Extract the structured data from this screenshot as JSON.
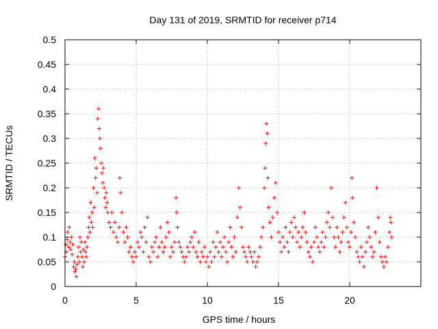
{
  "chart_data": {
    "type": "scatter",
    "title": "Day 131 of 2019, SRMTID for receiver p714",
    "xlabel": "GPS time / hours",
    "ylabel": "SRMTID / TECUs",
    "xlim": [
      0,
      25
    ],
    "ylim": [
      0,
      0.5
    ],
    "xticks": [
      0,
      5,
      10,
      15,
      20
    ],
    "xtick_labels": [
      "0",
      "5",
      "10",
      "15",
      "20"
    ],
    "yticks": [
      0,
      0.05,
      0.1,
      0.15,
      0.2,
      0.25,
      0.3,
      0.35,
      0.4,
      0.45,
      0.5
    ],
    "ytick_labels": [
      "0",
      "0.05",
      "0.1",
      "0.15",
      "0.2",
      "0.25",
      "0.3",
      "0.35",
      "0.4",
      "0.45",
      "0.5"
    ],
    "grid": true,
    "marker": "+",
    "color": "#ff0000",
    "series": [
      {
        "name": "SRMTID",
        "points": [
          [
            0.0,
            0.06
          ],
          [
            0.05,
            0.085
          ],
          [
            0.1,
            0.07
          ],
          [
            0.15,
            0.095
          ],
          [
            0.2,
            0.11
          ],
          [
            0.25,
            0.08
          ],
          [
            0.3,
            0.12
          ],
          [
            0.35,
            0.09
          ],
          [
            0.4,
            0.075
          ],
          [
            0.45,
            0.1
          ],
          [
            0.5,
            0.065
          ],
          [
            0.55,
            0.085
          ],
          [
            0.6,
            0.04
          ],
          [
            0.65,
            0.05
          ],
          [
            0.7,
            0.03
          ],
          [
            0.75,
            0.035
          ],
          [
            0.8,
            0.02
          ],
          [
            0.85,
            0.045
          ],
          [
            0.9,
            0.06
          ],
          [
            0.95,
            0.08
          ],
          [
            1.0,
            0.05
          ],
          [
            1.05,
            0.1
          ],
          [
            1.1,
            0.07
          ],
          [
            1.15,
            0.09
          ],
          [
            1.2,
            0.06
          ],
          [
            1.25,
            0.04
          ],
          [
            1.3,
            0.075
          ],
          [
            1.35,
            0.05
          ],
          [
            1.4,
            0.09
          ],
          [
            1.45,
            0.07
          ],
          [
            1.5,
            0.06
          ],
          [
            1.55,
            0.08
          ],
          [
            1.6,
            0.1
          ],
          [
            1.65,
            0.12
          ],
          [
            1.7,
            0.14
          ],
          [
            1.75,
            0.11
          ],
          [
            1.8,
            0.17
          ],
          [
            1.85,
            0.13
          ],
          [
            1.9,
            0.15
          ],
          [
            1.95,
            0.12
          ],
          [
            2.0,
            0.2
          ],
          [
            2.05,
            0.16
          ],
          [
            2.1,
            0.26
          ],
          [
            2.15,
            0.22
          ],
          [
            2.2,
            0.24
          ],
          [
            2.25,
            0.19
          ],
          [
            2.3,
            0.34
          ],
          [
            2.35,
            0.36
          ],
          [
            2.4,
            0.32
          ],
          [
            2.45,
            0.3
          ],
          [
            2.5,
            0.28
          ],
          [
            2.55,
            0.25
          ],
          [
            2.6,
            0.23
          ],
          [
            2.65,
            0.21
          ],
          [
            2.7,
            0.24
          ],
          [
            2.75,
            0.2
          ],
          [
            2.8,
            0.18
          ],
          [
            2.85,
            0.16
          ],
          [
            2.9,
            0.19
          ],
          [
            2.95,
            0.17
          ],
          [
            3.0,
            0.15
          ],
          [
            3.1,
            0.13
          ],
          [
            3.2,
            0.12
          ],
          [
            3.3,
            0.15
          ],
          [
            3.4,
            0.11
          ],
          [
            3.5,
            0.13
          ],
          [
            3.6,
            0.1
          ],
          [
            3.7,
            0.09
          ],
          [
            3.8,
            0.12
          ],
          [
            3.85,
            0.22
          ],
          [
            3.9,
            0.19
          ],
          [
            4.0,
            0.15
          ],
          [
            4.1,
            0.11
          ],
          [
            4.2,
            0.09
          ],
          [
            4.3,
            0.12
          ],
          [
            4.4,
            0.1
          ],
          [
            4.5,
            0.07
          ],
          [
            4.6,
            0.08
          ],
          [
            4.7,
            0.06
          ],
          [
            4.8,
            0.05
          ],
          [
            4.9,
            0.07
          ],
          [
            5.0,
            0.06
          ],
          [
            5.1,
            0.09
          ],
          [
            5.2,
            0.08
          ],
          [
            5.3,
            0.11
          ],
          [
            5.4,
            0.1
          ],
          [
            5.5,
            0.07
          ],
          [
            5.6,
            0.12
          ],
          [
            5.7,
            0.09
          ],
          [
            5.8,
            0.14
          ],
          [
            5.9,
            0.06
          ],
          [
            6.0,
            0.05
          ],
          [
            6.1,
            0.08
          ],
          [
            6.2,
            0.07
          ],
          [
            6.3,
            0.09
          ],
          [
            6.4,
            0.1
          ],
          [
            6.5,
            0.06
          ],
          [
            6.6,
            0.08
          ],
          [
            6.7,
            0.12
          ],
          [
            6.8,
            0.09
          ],
          [
            6.9,
            0.07
          ],
          [
            7.0,
            0.08
          ],
          [
            7.1,
            0.1
          ],
          [
            7.2,
            0.13
          ],
          [
            7.3,
            0.11
          ],
          [
            7.4,
            0.06
          ],
          [
            7.5,
            0.08
          ],
          [
            7.6,
            0.07
          ],
          [
            7.7,
            0.09
          ],
          [
            7.8,
            0.18
          ],
          [
            7.85,
            0.15
          ],
          [
            7.9,
            0.12
          ],
          [
            8.0,
            0.09
          ],
          [
            8.1,
            0.08
          ],
          [
            8.2,
            0.07
          ],
          [
            8.3,
            0.06
          ],
          [
            8.4,
            0.05
          ],
          [
            8.5,
            0.06
          ],
          [
            8.6,
            0.08
          ],
          [
            8.7,
            0.07
          ],
          [
            8.8,
            0.09
          ],
          [
            8.9,
            0.1
          ],
          [
            9.0,
            0.08
          ],
          [
            9.1,
            0.11
          ],
          [
            9.2,
            0.07
          ],
          [
            9.3,
            0.06
          ],
          [
            9.4,
            0.09
          ],
          [
            9.5,
            0.05
          ],
          [
            9.6,
            0.07
          ],
          [
            9.7,
            0.06
          ],
          [
            9.8,
            0.08
          ],
          [
            9.9,
            0.05
          ],
          [
            10.0,
            0.06
          ],
          [
            10.1,
            0.04
          ],
          [
            10.2,
            0.07
          ],
          [
            10.3,
            0.05
          ],
          [
            10.4,
            0.09
          ],
          [
            10.5,
            0.06
          ],
          [
            10.6,
            0.08
          ],
          [
            10.7,
            0.11
          ],
          [
            10.8,
            0.07
          ],
          [
            10.9,
            0.09
          ],
          [
            11.0,
            0.06
          ],
          [
            11.1,
            0.08
          ],
          [
            11.2,
            0.1
          ],
          [
            11.3,
            0.07
          ],
          [
            11.4,
            0.05
          ],
          [
            11.5,
            0.09
          ],
          [
            11.6,
            0.12
          ],
          [
            11.7,
            0.08
          ],
          [
            11.8,
            0.06
          ],
          [
            11.9,
            0.1
          ],
          [
            12.0,
            0.07
          ],
          [
            12.1,
            0.14
          ],
          [
            12.2,
            0.2
          ],
          [
            12.3,
            0.16
          ],
          [
            12.4,
            0.12
          ],
          [
            12.5,
            0.08
          ],
          [
            12.6,
            0.07
          ],
          [
            12.7,
            0.06
          ],
          [
            12.8,
            0.05
          ],
          [
            12.9,
            0.08
          ],
          [
            13.0,
            0.07
          ],
          [
            13.1,
            0.06
          ],
          [
            13.2,
            0.05
          ],
          [
            13.3,
            0.07
          ],
          [
            13.4,
            0.04
          ],
          [
            13.5,
            0.05
          ],
          [
            13.6,
            0.06
          ],
          [
            13.7,
            0.08
          ],
          [
            13.8,
            0.1
          ],
          [
            13.9,
            0.12
          ],
          [
            14.0,
            0.2
          ],
          [
            14.05,
            0.24
          ],
          [
            14.1,
            0.29
          ],
          [
            14.15,
            0.33
          ],
          [
            14.2,
            0.31
          ],
          [
            14.25,
            0.22
          ],
          [
            14.3,
            0.16
          ],
          [
            14.4,
            0.13
          ],
          [
            14.5,
            0.1
          ],
          [
            14.6,
            0.14
          ],
          [
            14.7,
            0.18
          ],
          [
            14.8,
            0.21
          ],
          [
            14.9,
            0.15
          ],
          [
            15.0,
            0.11
          ],
          [
            15.1,
            0.09
          ],
          [
            15.2,
            0.07
          ],
          [
            15.3,
            0.1
          ],
          [
            15.4,
            0.08
          ],
          [
            15.5,
            0.12
          ],
          [
            15.6,
            0.09
          ],
          [
            15.7,
            0.07
          ],
          [
            15.8,
            0.11
          ],
          [
            15.9,
            0.13
          ],
          [
            16.0,
            0.1
          ],
          [
            16.1,
            0.14
          ],
          [
            16.2,
            0.12
          ],
          [
            16.3,
            0.09
          ],
          [
            16.4,
            0.11
          ],
          [
            16.5,
            0.08
          ],
          [
            16.6,
            0.1
          ],
          [
            16.7,
            0.12
          ],
          [
            16.8,
            0.15
          ],
          [
            16.9,
            0.11
          ],
          [
            17.0,
            0.09
          ],
          [
            17.1,
            0.07
          ],
          [
            17.2,
            0.06
          ],
          [
            17.3,
            0.08
          ],
          [
            17.4,
            0.05
          ],
          [
            17.5,
            0.09
          ],
          [
            17.6,
            0.12
          ],
          [
            17.7,
            0.1
          ],
          [
            17.8,
            0.08
          ],
          [
            17.9,
            0.07
          ],
          [
            18.0,
            0.09
          ],
          [
            18.1,
            0.11
          ],
          [
            18.2,
            0.08
          ],
          [
            18.3,
            0.1
          ],
          [
            18.4,
            0.13
          ],
          [
            18.5,
            0.15
          ],
          [
            18.6,
            0.12
          ],
          [
            18.7,
            0.2
          ],
          [
            18.8,
            0.14
          ],
          [
            18.9,
            0.1
          ],
          [
            19.0,
            0.08
          ],
          [
            19.1,
            0.12
          ],
          [
            19.2,
            0.1
          ],
          [
            19.3,
            0.07
          ],
          [
            19.4,
            0.09
          ],
          [
            19.5,
            0.11
          ],
          [
            19.6,
            0.14
          ],
          [
            19.7,
            0.17
          ],
          [
            19.8,
            0.12
          ],
          [
            19.9,
            0.09
          ],
          [
            20.0,
            0.08
          ],
          [
            20.1,
            0.11
          ],
          [
            20.15,
            0.22
          ],
          [
            20.2,
            0.18
          ],
          [
            20.3,
            0.13
          ],
          [
            20.4,
            0.1
          ],
          [
            20.5,
            0.07
          ],
          [
            20.6,
            0.06
          ],
          [
            20.7,
            0.05
          ],
          [
            20.8,
            0.08
          ],
          [
            20.9,
            0.06
          ],
          [
            21.0,
            0.04
          ],
          [
            21.1,
            0.07
          ],
          [
            21.2,
            0.09
          ],
          [
            21.3,
            0.12
          ],
          [
            21.4,
            0.1
          ],
          [
            21.5,
            0.08
          ],
          [
            21.6,
            0.06
          ],
          [
            21.7,
            0.07
          ],
          [
            21.8,
            0.11
          ],
          [
            21.9,
            0.2
          ],
          [
            22.0,
            0.14
          ],
          [
            22.1,
            0.09
          ],
          [
            22.2,
            0.06
          ],
          [
            22.3,
            0.05
          ],
          [
            22.4,
            0.04
          ],
          [
            22.5,
            0.06
          ],
          [
            22.6,
            0.05
          ],
          [
            22.7,
            0.08
          ],
          [
            22.8,
            0.11
          ],
          [
            22.85,
            0.14
          ],
          [
            22.9,
            0.13
          ],
          [
            22.95,
            0.1
          ]
        ]
      }
    ]
  }
}
